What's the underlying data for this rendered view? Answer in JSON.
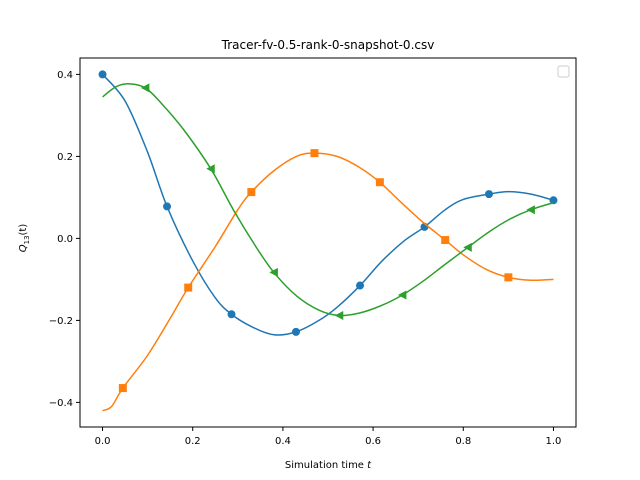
{
  "chart_data": {
    "type": "line",
    "title": "Tracer-fv-0.5-rank-0-snapshot-0.csv",
    "xlabel": "Simulation time t",
    "xlabel_parts": {
      "text": "Simulation time ",
      "var": "t"
    },
    "ylabel_parts": {
      "base": "Q",
      "sub": "13",
      "suffix": "(t)"
    },
    "xlim": [
      -0.05,
      1.05
    ],
    "ylim": [
      -0.46,
      0.44
    ],
    "xticks": [
      0.0,
      0.2,
      0.4,
      0.6,
      0.8,
      1.0
    ],
    "xtick_labels": [
      "0.0",
      "0.2",
      "0.4",
      "0.6",
      "0.8",
      "1.0"
    ],
    "yticks": [
      -0.4,
      -0.2,
      0.0,
      0.2,
      0.4
    ],
    "ytick_labels": [
      "−0.4",
      "−0.2",
      "0.0",
      "0.2",
      "0.4"
    ],
    "grid": false,
    "legend": {
      "placement": "upper-right",
      "entries": []
    },
    "series": [
      {
        "color": "#1f77b4",
        "marker": "circle",
        "x": [
          0.0,
          0.05,
          0.1,
          0.143,
          0.2,
          0.25,
          0.286,
          0.33,
          0.38,
          0.429,
          0.48,
          0.52,
          0.571,
          0.62,
          0.67,
          0.714,
          0.76,
          0.8,
          0.857,
          0.9,
          0.95,
          1.0
        ],
        "y": [
          0.4,
          0.335,
          0.21,
          0.078,
          -0.055,
          -0.145,
          -0.185,
          -0.215,
          -0.235,
          -0.228,
          -0.2,
          -0.168,
          -0.115,
          -0.055,
          -0.005,
          0.028,
          0.07,
          0.095,
          0.108,
          0.114,
          0.108,
          0.093
        ],
        "markers_x": [
          0.0,
          0.143,
          0.286,
          0.429,
          0.571,
          0.714,
          0.857,
          1.0
        ],
        "markers_y": [
          0.4,
          0.078,
          -0.185,
          -0.228,
          -0.115,
          0.028,
          0.108,
          0.093
        ]
      },
      {
        "color": "#ff7f0e",
        "marker": "square",
        "x": [
          0.0,
          0.02,
          0.045,
          0.1,
          0.15,
          0.19,
          0.25,
          0.3,
          0.33,
          0.38,
          0.43,
          0.47,
          0.52,
          0.57,
          0.615,
          0.66,
          0.71,
          0.76,
          0.8,
          0.85,
          0.9,
          0.95,
          1.0
        ],
        "y": [
          -0.42,
          -0.41,
          -0.365,
          -0.285,
          -0.195,
          -0.12,
          -0.02,
          0.07,
          0.113,
          0.165,
          0.2,
          0.208,
          0.2,
          0.173,
          0.137,
          0.09,
          0.04,
          -0.004,
          -0.04,
          -0.075,
          -0.095,
          -0.102,
          -0.1
        ],
        "markers_x": [
          0.045,
          0.19,
          0.33,
          0.47,
          0.615,
          0.76,
          0.9
        ],
        "markers_y": [
          -0.365,
          -0.12,
          0.113,
          0.208,
          0.137,
          -0.004,
          -0.095
        ]
      },
      {
        "color": "#2ca02c",
        "marker": "triangle-left",
        "x": [
          0.0,
          0.03,
          0.06,
          0.095,
          0.13,
          0.18,
          0.24,
          0.29,
          0.34,
          0.38,
          0.43,
          0.48,
          0.525,
          0.57,
          0.62,
          0.665,
          0.71,
          0.76,
          0.81,
          0.86,
          0.905,
          0.95,
          1.0
        ],
        "y": [
          0.345,
          0.37,
          0.377,
          0.367,
          0.33,
          0.265,
          0.17,
          0.07,
          -0.02,
          -0.083,
          -0.14,
          -0.175,
          -0.188,
          -0.182,
          -0.163,
          -0.138,
          -0.105,
          -0.063,
          -0.022,
          0.018,
          0.048,
          0.07,
          0.087
        ],
        "markers_x": [
          0.095,
          0.24,
          0.38,
          0.525,
          0.665,
          0.81,
          0.95
        ],
        "markers_y": [
          0.367,
          0.17,
          -0.083,
          -0.188,
          -0.138,
          -0.022,
          0.07
        ]
      }
    ]
  }
}
